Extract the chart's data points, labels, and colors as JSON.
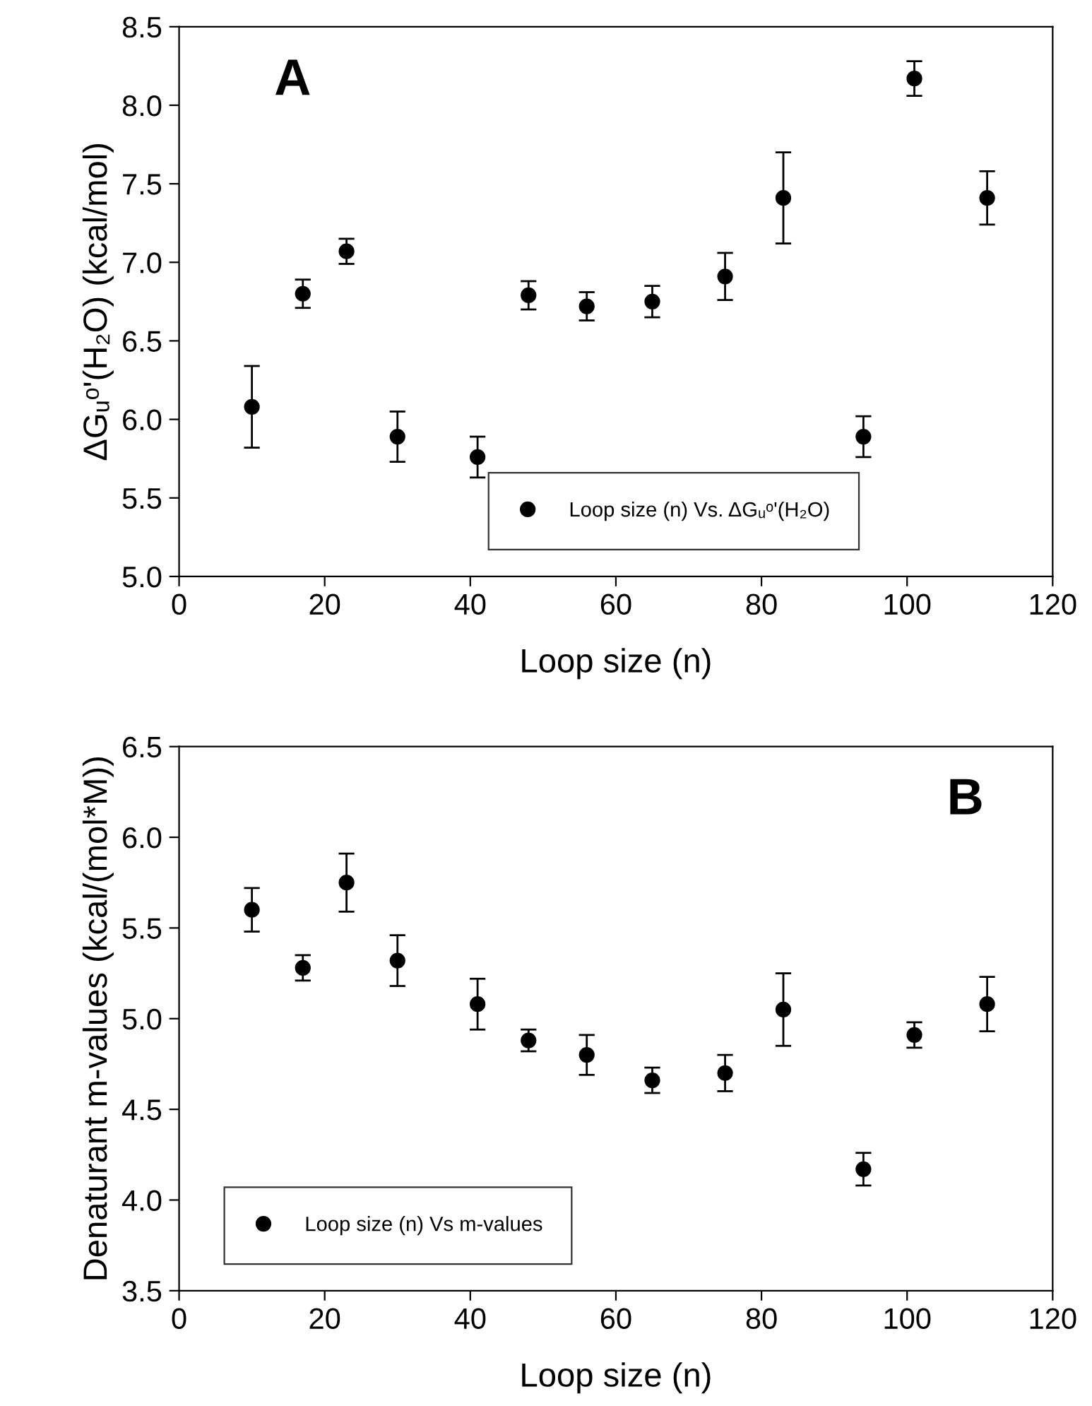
{
  "chart_data": [
    {
      "type": "scatter",
      "xlabel": "Loop size (n)",
      "ylabel": "ΔGᵤᵒ'(H₂O) (kcal/mol)",
      "annotations": [
        "A"
      ],
      "x": [
        10,
        17,
        23,
        30,
        41,
        48,
        56,
        65,
        75,
        83,
        94,
        101,
        111
      ],
      "series": [
        {
          "name": "Loop size (n) Vs. ΔGᵤᵒ'(H₂O)",
          "color": "#000000",
          "values": [
            6.08,
            6.8,
            7.07,
            5.89,
            5.76,
            6.79,
            6.72,
            6.75,
            6.91,
            7.41,
            5.89,
            8.17,
            7.41
          ],
          "errors": [
            [
              5.82,
              6.34
            ],
            [
              6.71,
              6.89
            ],
            [
              6.99,
              7.15
            ],
            [
              5.73,
              6.05
            ],
            [
              5.63,
              5.89
            ],
            [
              6.7,
              6.88
            ],
            [
              6.63,
              6.81
            ],
            [
              6.65,
              6.85
            ],
            [
              6.76,
              7.06
            ],
            [
              7.12,
              7.7
            ],
            [
              5.76,
              6.02
            ],
            [
              8.06,
              8.28
            ],
            [
              7.24,
              7.58
            ]
          ]
        }
      ],
      "xlim": [
        0,
        120
      ],
      "xticks": [
        0,
        20,
        40,
        60,
        80,
        100,
        120
      ],
      "ylim": [
        5.0,
        8.5
      ],
      "yticks": [
        {
          "value": 5.0,
          "label": "5.0"
        },
        5.5,
        {
          "value": 6.0,
          "label": "6.0"
        },
        6.5,
        {
          "value": 7.0,
          "label": "7.0"
        },
        7.5,
        {
          "value": 8.0,
          "label": "8.0"
        },
        8.5
      ],
      "marker": "circle",
      "grid": false,
      "legend": "bottom right"
    },
    {
      "type": "scatter",
      "xlabel": "Loop size (n)",
      "ylabel": "Denaturant m-values (kcal/(mol*M))",
      "annotations": [
        "B"
      ],
      "x": [
        10,
        17,
        23,
        30,
        41,
        48,
        56,
        65,
        75,
        83,
        94,
        101,
        111
      ],
      "series": [
        {
          "name": "Loop size (n) Vs m-values",
          "color": "#000000",
          "values": [
            5.6,
            5.28,
            5.75,
            5.32,
            5.08,
            4.88,
            4.8,
            4.66,
            4.7,
            5.05,
            4.17,
            4.91,
            5.08
          ],
          "errors": [
            [
              5.48,
              5.72
            ],
            [
              5.21,
              5.35
            ],
            [
              5.59,
              5.91
            ],
            [
              5.18,
              5.46
            ],
            [
              4.94,
              5.22
            ],
            [
              4.82,
              4.94
            ],
            [
              4.69,
              4.91
            ],
            [
              4.59,
              4.73
            ],
            [
              4.6,
              4.8
            ],
            [
              4.85,
              5.25
            ],
            [
              4.08,
              4.26
            ],
            [
              4.84,
              4.98
            ],
            [
              4.93,
              5.23
            ]
          ]
        }
      ],
      "xlim": [
        0,
        120
      ],
      "xticks": [
        0,
        20,
        40,
        60,
        80,
        100,
        120
      ],
      "ylim": [
        3.5,
        6.5
      ],
      "yticks": [
        3.5,
        {
          "value": 4.0,
          "label": "4.0"
        },
        4.5,
        {
          "value": 5.0,
          "label": "5.0"
        },
        5.5,
        {
          "value": 6.0,
          "label": "6.0"
        },
        6.5
      ],
      "marker": "circle",
      "grid": false,
      "legend": "bottom left"
    }
  ]
}
